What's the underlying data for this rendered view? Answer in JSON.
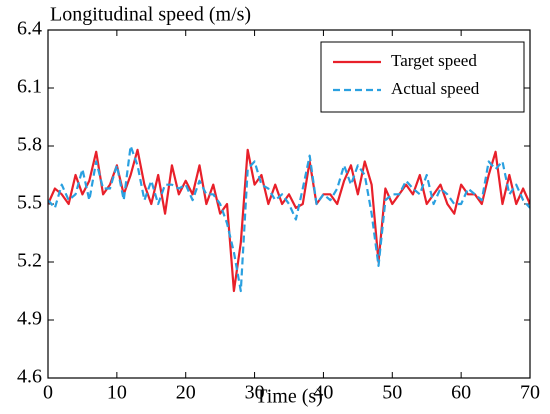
{
  "chart_data": {
    "type": "line",
    "title": "Longitudinal speed (m/s)",
    "xlabel": "Time (s)",
    "x": [
      0,
      1,
      2,
      3,
      4,
      5,
      6,
      7,
      8,
      9,
      10,
      11,
      12,
      13,
      14,
      15,
      16,
      17,
      18,
      19,
      20,
      21,
      22,
      23,
      24,
      25,
      26,
      27,
      28,
      29,
      30,
      31,
      32,
      33,
      34,
      35,
      36,
      37,
      38,
      39,
      40,
      41,
      42,
      43,
      44,
      45,
      46,
      47,
      48,
      49,
      50,
      51,
      52,
      53,
      54,
      55,
      56,
      57,
      58,
      59,
      60,
      61,
      62,
      63,
      64,
      65,
      66,
      67,
      68,
      69,
      70
    ],
    "series": [
      {
        "name": "Target speed",
        "color": "#e8202a",
        "style": "solid",
        "values": [
          5.5,
          5.58,
          5.55,
          5.5,
          5.65,
          5.55,
          5.62,
          5.77,
          5.55,
          5.6,
          5.7,
          5.55,
          5.65,
          5.78,
          5.6,
          5.5,
          5.65,
          5.45,
          5.7,
          5.55,
          5.62,
          5.55,
          5.7,
          5.5,
          5.6,
          5.45,
          5.5,
          5.05,
          5.3,
          5.78,
          5.6,
          5.65,
          5.5,
          5.6,
          5.5,
          5.55,
          5.48,
          5.5,
          5.72,
          5.5,
          5.55,
          5.55,
          5.5,
          5.62,
          5.7,
          5.55,
          5.72,
          5.6,
          5.2,
          5.58,
          5.5,
          5.55,
          5.6,
          5.55,
          5.65,
          5.5,
          5.55,
          5.6,
          5.5,
          5.45,
          5.6,
          5.55,
          5.55,
          5.5,
          5.65,
          5.77,
          5.5,
          5.65,
          5.5,
          5.58,
          5.5
        ]
      },
      {
        "name": "Actual speed",
        "color": "#2aa0e0",
        "style": "dashed",
        "values": [
          5.52,
          5.48,
          5.6,
          5.52,
          5.55,
          5.68,
          5.52,
          5.72,
          5.58,
          5.58,
          5.7,
          5.52,
          5.8,
          5.7,
          5.52,
          5.62,
          5.5,
          5.6,
          5.6,
          5.58,
          5.6,
          5.52,
          5.62,
          5.55,
          5.55,
          5.5,
          5.4,
          5.25,
          5.05,
          5.68,
          5.72,
          5.6,
          5.58,
          5.52,
          5.55,
          5.5,
          5.42,
          5.58,
          5.75,
          5.5,
          5.55,
          5.52,
          5.58,
          5.7,
          5.6,
          5.7,
          5.65,
          5.45,
          5.18,
          5.52,
          5.55,
          5.55,
          5.62,
          5.58,
          5.55,
          5.65,
          5.5,
          5.58,
          5.55,
          5.5,
          5.5,
          5.58,
          5.55,
          5.52,
          5.72,
          5.68,
          5.72,
          5.55,
          5.6,
          5.52,
          5.48
        ]
      }
    ],
    "xlim": [
      0,
      70
    ],
    "xticks": [
      0,
      10,
      20,
      30,
      40,
      50,
      60,
      70
    ],
    "ylim": [
      4.6,
      6.4
    ],
    "yticks": [
      4.6,
      4.9,
      5.2,
      5.5,
      5.8,
      6.1,
      6.4
    ],
    "legend": "upper right"
  }
}
